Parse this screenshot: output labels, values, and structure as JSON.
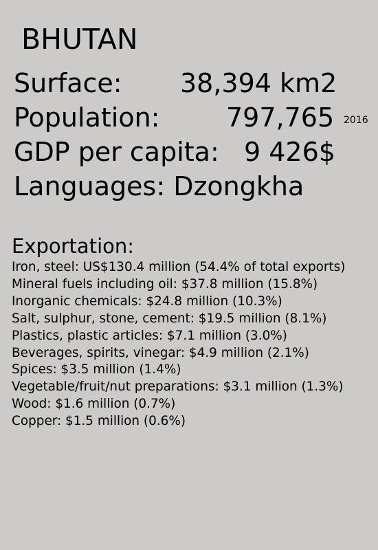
{
  "country": "BHUTAN",
  "stats": {
    "surface": {
      "label": "Surface:",
      "value": "38,394 km2"
    },
    "population": {
      "label": "Population:",
      "value": "797,765",
      "year": "2016"
    },
    "gdp": {
      "label": "GDP per capita:",
      "value": "9 426$"
    },
    "languages": {
      "text": "Languages: Dzongkha"
    }
  },
  "exports": {
    "heading": "Exportation:",
    "items": [
      "Iron, steel: US$130.4 million (54.4% of total exports)",
      "Mineral fuels including oil: $37.8 million (15.8%)",
      "Inorganic chemicals: $24.8 million (10.3%)",
      "Salt, sulphur, stone, cement: $19.5 million (8.1%)",
      "Plastics, plastic articles: $7.1 million (3.0%)",
      "Beverages, spirits, vinegar: $4.9 million (2.1%)",
      "Spices: $3.5 million (1.4%)",
      "Vegetable/fruit/nut preparations: $3.1 million (1.3%)",
      "Wood: $1.6 million (0.7%)",
      "Copper: $1.5 million (0.6%)"
    ]
  }
}
